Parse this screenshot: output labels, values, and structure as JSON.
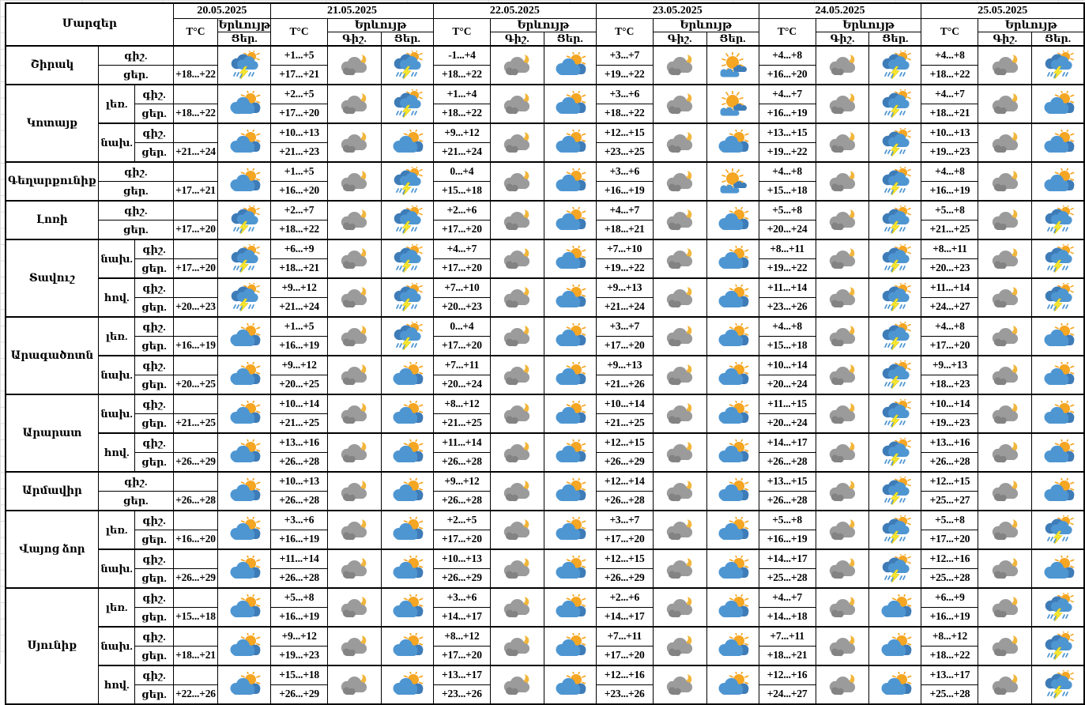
{
  "table": {
    "labels": {
      "region_header": "Մարզեր",
      "temp_header": "T°C",
      "phenomenon_header": "Երևույթ",
      "night_col": "Գիշ.",
      "day_col": "Ցեր.",
      "night_row": "գիշ.",
      "day_row": "ցեր."
    },
    "dates": [
      "20.05.2025",
      "21.05.2025",
      "22.05.2025",
      "23.05.2025",
      "24.05.2025",
      "25.05.2025"
    ],
    "first_date_day_only": true,
    "icon_types": {
      "moon": "cloud-moon-icon",
      "partly": "sun-cloud-icon",
      "storm": "sun-cloud-storm-icon",
      "sunhaze": "sun-low-clouds-icon"
    },
    "colors": {
      "border": "#000000",
      "sun": "#F5A623",
      "moon": "#F2B63C",
      "cloud_blue": "#4E96D2",
      "cloud_blue_dark": "#3E7CB8",
      "cloud_gray": "#9B9B9B",
      "cloud_gray_dark": "#838383",
      "lightning": "#F7E733",
      "grid_line": "#DCDCDC"
    },
    "regions": [
      {
        "name": "Շիրակ",
        "zones": [
          {
            "label": "",
            "temps": [
              [
                "",
                "+18...+22"
              ],
              [
                "+1...+5",
                "+17...+21"
              ],
              [
                "-1...+4",
                "+18...+22"
              ],
              [
                "+3...+7",
                "+19...+22"
              ],
              [
                "+4...+8",
                "+16...+20"
              ],
              [
                "+4...+8",
                "+18...+22"
              ]
            ],
            "day_icons": [
              "storm",
              "storm",
              "partly",
              "sunhaze",
              "storm",
              "storm"
            ]
          }
        ]
      },
      {
        "name": "Կոտայք",
        "zones": [
          {
            "label": "լեռ.",
            "temps": [
              [
                "",
                "+18...+22"
              ],
              [
                "+2...+5",
                "+17...+20"
              ],
              [
                "+1...+4",
                "+18...+22"
              ],
              [
                "+3...+6",
                "+18...+22"
              ],
              [
                "+4...+7",
                "+16...+19"
              ],
              [
                "+4...+7",
                "+18...+21"
              ]
            ],
            "day_icons": [
              "partly",
              "storm",
              "partly",
              "sunhaze",
              "storm",
              "partly"
            ]
          },
          {
            "label": "նախ.",
            "temps": [
              [
                "",
                "+21...+24"
              ],
              [
                "+10...+13",
                "+21...+23"
              ],
              [
                "+9...+12",
                "+21...+24"
              ],
              [
                "+12...+15",
                "+23...+25"
              ],
              [
                "+13...+15",
                "+19...+22"
              ],
              [
                "+10...+13",
                "+19...+23"
              ]
            ],
            "day_icons": [
              "partly",
              "partly",
              "partly",
              "partly",
              "storm",
              "partly"
            ]
          }
        ]
      },
      {
        "name": "Գեղարքունիք",
        "zones": [
          {
            "label": "",
            "temps": [
              [
                "",
                "+17...+21"
              ],
              [
                "+1...+5",
                "+16...+20"
              ],
              [
                "0...+4",
                "+15...+18"
              ],
              [
                "+3...+6",
                "+16...+19"
              ],
              [
                "+4...+8",
                "+15...+18"
              ],
              [
                "+4...+8",
                "+16...+19"
              ]
            ],
            "day_icons": [
              "partly",
              "storm",
              "partly",
              "sunhaze",
              "storm",
              "partly"
            ]
          }
        ]
      },
      {
        "name": "Լոռի",
        "zones": [
          {
            "label": "",
            "temps": [
              [
                "",
                "+17...+20"
              ],
              [
                "+2...+7",
                "+18...+22"
              ],
              [
                "+2...+6",
                "+17...+20"
              ],
              [
                "+4...+7",
                "+18...+21"
              ],
              [
                "+5...+8",
                "+20...+24"
              ],
              [
                "+5...+8",
                "+21...+25"
              ]
            ],
            "day_icons": [
              "storm",
              "storm",
              "partly",
              "partly",
              "storm",
              "storm"
            ]
          }
        ]
      },
      {
        "name": "Տավուշ",
        "zones": [
          {
            "label": "նախ.",
            "temps": [
              [
                "",
                "+17...+20"
              ],
              [
                "+6...+9",
                "+18...+21"
              ],
              [
                "+4...+7",
                "+17...+20"
              ],
              [
                "+7...+10",
                "+19...+22"
              ],
              [
                "+8...+11",
                "+19...+22"
              ],
              [
                "+8...+11",
                "+20...+23"
              ]
            ],
            "day_icons": [
              "storm",
              "storm",
              "partly",
              "partly",
              "storm",
              "storm"
            ]
          },
          {
            "label": "հով.",
            "temps": [
              [
                "",
                "+20...+23"
              ],
              [
                "+9...+12",
                "+21...+24"
              ],
              [
                "+7...+10",
                "+20...+23"
              ],
              [
                "+9...+13",
                "+21...+24"
              ],
              [
                "+11...+14",
                "+23...+26"
              ],
              [
                "+11...+14",
                "+24...+27"
              ]
            ],
            "day_icons": [
              "storm",
              "storm",
              "partly",
              "partly",
              "storm",
              "storm"
            ]
          }
        ]
      },
      {
        "name": "Արագածոտն",
        "zones": [
          {
            "label": "լեռ.",
            "temps": [
              [
                "",
                "+16...+19"
              ],
              [
                "+1...+5",
                "+16...+19"
              ],
              [
                "0...+4",
                "+17...+20"
              ],
              [
                "+3...+7",
                "+17...+20"
              ],
              [
                "+4...+8",
                "+15...+18"
              ],
              [
                "+4...+8",
                "+17...+20"
              ]
            ],
            "day_icons": [
              "partly",
              "storm",
              "partly",
              "partly",
              "storm",
              "partly"
            ]
          },
          {
            "label": "նախ.",
            "temps": [
              [
                "",
                "+20...+25"
              ],
              [
                "+9...+12",
                "+20...+25"
              ],
              [
                "+7...+11",
                "+20...+24"
              ],
              [
                "+9...+13",
                "+21...+26"
              ],
              [
                "+10...+14",
                "+20...+24"
              ],
              [
                "+9...+13",
                "+18...+23"
              ]
            ],
            "day_icons": [
              "partly",
              "partly",
              "partly",
              "partly",
              "storm",
              "partly"
            ]
          }
        ]
      },
      {
        "name": "Արարատ",
        "zones": [
          {
            "label": "նախ.",
            "temps": [
              [
                "",
                "+21...+25"
              ],
              [
                "+10...+14",
                "+21...+25"
              ],
              [
                "+8...+12",
                "+21...+25"
              ],
              [
                "+10...+14",
                "+21...+25"
              ],
              [
                "+11...+15",
                "+20...+24"
              ],
              [
                "+10...+14",
                "+19...+23"
              ]
            ],
            "day_icons": [
              "partly",
              "partly",
              "partly",
              "partly",
              "storm",
              "partly"
            ]
          },
          {
            "label": "հով.",
            "temps": [
              [
                "",
                "+26...+29"
              ],
              [
                "+13...+16",
                "+26...+28"
              ],
              [
                "+11...+14",
                "+26...+28"
              ],
              [
                "+12...+15",
                "+26...+29"
              ],
              [
                "+14...+17",
                "+26...+28"
              ],
              [
                "+13...+16",
                "+26...+28"
              ]
            ],
            "day_icons": [
              "partly",
              "partly",
              "partly",
              "partly",
              "storm",
              "partly"
            ]
          }
        ]
      },
      {
        "name": "Արմավիր",
        "zones": [
          {
            "label": "",
            "temps": [
              [
                "",
                "+26...+28"
              ],
              [
                "+10...+13",
                "+26...+28"
              ],
              [
                "+9...+12",
                "+26...+28"
              ],
              [
                "+12...+14",
                "+26...+28"
              ],
              [
                "+13...+15",
                "+26...+28"
              ],
              [
                "+12...+15",
                "+25...+27"
              ]
            ],
            "day_icons": [
              "partly",
              "partly",
              "partly",
              "partly",
              "storm",
              "partly"
            ]
          }
        ]
      },
      {
        "name": "Վայոց ձոր",
        "zones": [
          {
            "label": "լեռ.",
            "temps": [
              [
                "",
                "+16...+20"
              ],
              [
                "+3...+6",
                "+16...+19"
              ],
              [
                "+2...+5",
                "+17...+20"
              ],
              [
                "+3...+7",
                "+17...+20"
              ],
              [
                "+5...+8",
                "+16...+19"
              ],
              [
                "+5...+8",
                "+17...+20"
              ]
            ],
            "day_icons": [
              "partly",
              "partly",
              "partly",
              "partly",
              "storm",
              "storm"
            ]
          },
          {
            "label": "նախ.",
            "temps": [
              [
                "",
                "+26...+29"
              ],
              [
                "+11...+14",
                "+26...+28"
              ],
              [
                "+10...+13",
                "+26...+29"
              ],
              [
                "+12...+15",
                "+26...+29"
              ],
              [
                "+14...+17",
                "+25...+28"
              ],
              [
                "+12...+16",
                "+25...+28"
              ]
            ],
            "day_icons": [
              "partly",
              "partly",
              "partly",
              "partly",
              "storm",
              "partly"
            ]
          }
        ]
      },
      {
        "name": "Սյունիք",
        "zones": [
          {
            "label": "լեռ.",
            "temps": [
              [
                "",
                "+15...+18"
              ],
              [
                "+5...+8",
                "+16...+19"
              ],
              [
                "+3...+6",
                "+14...+17"
              ],
              [
                "+2...+6",
                "+14...+17"
              ],
              [
                "+4...+7",
                "+14...+18"
              ],
              [
                "+6...+9",
                "+16...+19"
              ]
            ],
            "day_icons": [
              "partly",
              "partly",
              "partly",
              "partly",
              "partly",
              "storm"
            ]
          },
          {
            "label": "նախ.",
            "temps": [
              [
                "",
                "+18...+21"
              ],
              [
                "+9...+12",
                "+19...+23"
              ],
              [
                "+8...+12",
                "+17...+20"
              ],
              [
                "+7...+11",
                "+17...+20"
              ],
              [
                "+7...+11",
                "+18...+21"
              ],
              [
                "+8...+12",
                "+18...+22"
              ]
            ],
            "day_icons": [
              "partly",
              "partly",
              "partly",
              "partly",
              "partly",
              "storm"
            ]
          },
          {
            "label": "հով.",
            "temps": [
              [
                "",
                "+22...+26"
              ],
              [
                "+15...+18",
                "+26...+29"
              ],
              [
                "+13...+17",
                "+23...+26"
              ],
              [
                "+12...+16",
                "+23...+26"
              ],
              [
                "+12...+16",
                "+24...+27"
              ],
              [
                "+13...+17",
                "+25...+28"
              ]
            ],
            "day_icons": [
              "partly",
              "partly",
              "partly",
              "partly",
              "partly",
              "storm"
            ]
          }
        ]
      }
    ]
  }
}
